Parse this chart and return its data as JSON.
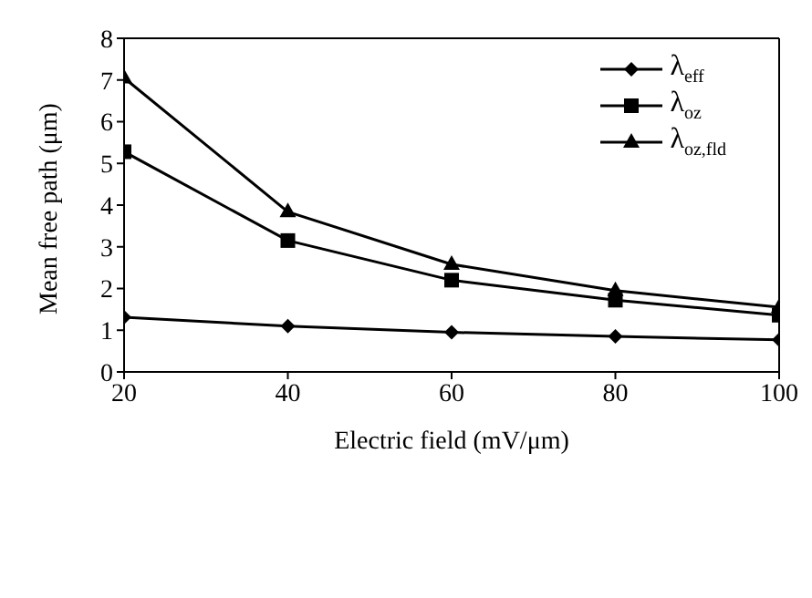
{
  "chart_data": {
    "type": "line",
    "xlabel": "Electric field (mV/μm)",
    "ylabel": "Mean free path (μm)",
    "x": [
      20,
      40,
      60,
      80,
      100
    ],
    "series": [
      {
        "name": "λ$_{eff}$",
        "color": "#000000",
        "marker": "diamond",
        "values": [
          1.31,
          1.1,
          0.95,
          0.85,
          0.77
        ]
      },
      {
        "name": "λ$_{oz}$",
        "color": "#000000",
        "marker": "square",
        "values": [
          5.28,
          3.15,
          2.2,
          1.72,
          1.36
        ]
      },
      {
        "name": "λ$_{oz,fld}$",
        "color": "#000000",
        "marker": "triangle",
        "values": [
          7.05,
          3.84,
          2.58,
          1.95,
          1.55
        ]
      }
    ],
    "xlim": [
      20,
      100
    ],
    "xticks": [
      20,
      40,
      60,
      80,
      100
    ],
    "ylim": [
      0,
      8
    ],
    "yticks": [
      0,
      1,
      2,
      3,
      4,
      5,
      6,
      7,
      8
    ],
    "grid": false,
    "legend": "top right",
    "line_style": "solid"
  }
}
